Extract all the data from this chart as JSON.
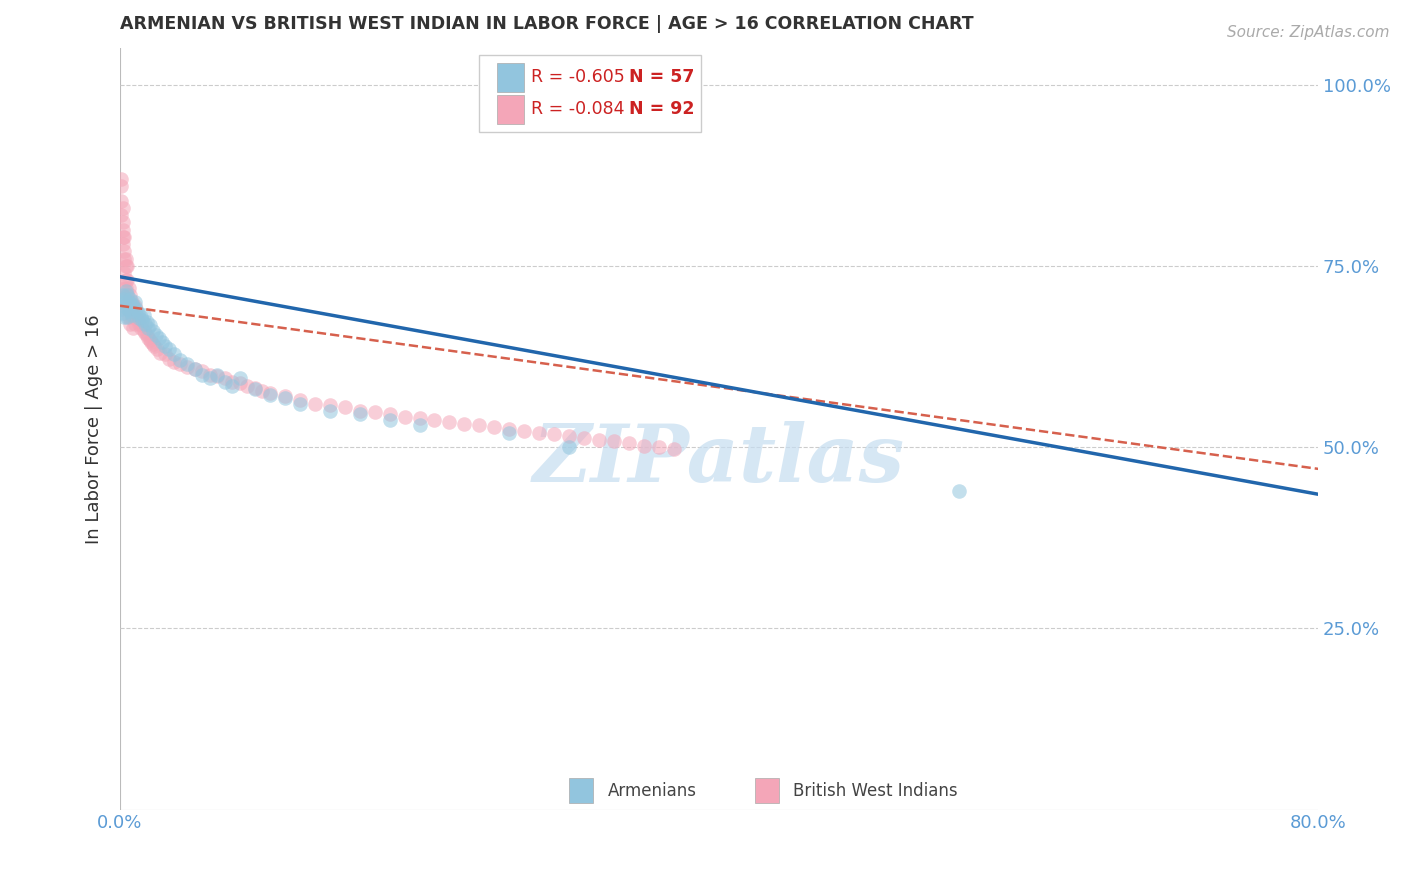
{
  "title": "ARMENIAN VS BRITISH WEST INDIAN IN LABOR FORCE | AGE > 16 CORRELATION CHART",
  "source": "Source: ZipAtlas.com",
  "ylabel": "In Labor Force | Age > 16",
  "right_yticks": [
    "100.0%",
    "75.0%",
    "50.0%",
    "25.0%"
  ],
  "right_ytick_vals": [
    1.0,
    0.75,
    0.5,
    0.25
  ],
  "background_color": "#ffffff",
  "grid_color": "#cccccc",
  "title_color": "#333333",
  "source_color": "#aaaaaa",
  "blue_color": "#92c5de",
  "pink_color": "#f4a6b8",
  "blue_line_color": "#2166ac",
  "pink_line_color": "#d6604d",
  "right_axis_color": "#5b9bd5",
  "legend_R1": "R = -0.605",
  "legend_N1": "N = 57",
  "legend_R2": "R = -0.084",
  "legend_N2": "N = 92",
  "legend_text_color": "#cc2222",
  "armenian_label": "Armenians",
  "bwi_label": "British West Indians",
  "armenians_x": [
    0.001,
    0.001,
    0.002,
    0.002,
    0.003,
    0.003,
    0.003,
    0.004,
    0.004,
    0.005,
    0.005,
    0.005,
    0.006,
    0.006,
    0.007,
    0.007,
    0.008,
    0.008,
    0.009,
    0.01,
    0.011,
    0.012,
    0.013,
    0.014,
    0.015,
    0.016,
    0.017,
    0.018,
    0.019,
    0.02,
    0.022,
    0.024,
    0.026,
    0.028,
    0.03,
    0.033,
    0.036,
    0.04,
    0.045,
    0.05,
    0.055,
    0.06,
    0.065,
    0.07,
    0.075,
    0.08,
    0.09,
    0.1,
    0.11,
    0.12,
    0.14,
    0.16,
    0.18,
    0.2,
    0.26,
    0.3,
    0.56
  ],
  "armenians_y": [
    0.7,
    0.69,
    0.71,
    0.685,
    0.705,
    0.695,
    0.68,
    0.715,
    0.7,
    0.71,
    0.695,
    0.68,
    0.7,
    0.69,
    0.705,
    0.688,
    0.698,
    0.682,
    0.695,
    0.7,
    0.69,
    0.685,
    0.678,
    0.68,
    0.675,
    0.682,
    0.67,
    0.672,
    0.665,
    0.668,
    0.66,
    0.655,
    0.65,
    0.645,
    0.64,
    0.635,
    0.628,
    0.62,
    0.615,
    0.608,
    0.6,
    0.595,
    0.6,
    0.59,
    0.585,
    0.595,
    0.58,
    0.572,
    0.568,
    0.56,
    0.55,
    0.545,
    0.538,
    0.53,
    0.52,
    0.5,
    0.44
  ],
  "bwi_x": [
    0.001,
    0.001,
    0.001,
    0.001,
    0.002,
    0.002,
    0.002,
    0.002,
    0.002,
    0.003,
    0.003,
    0.003,
    0.003,
    0.003,
    0.004,
    0.004,
    0.004,
    0.004,
    0.005,
    0.005,
    0.005,
    0.005,
    0.006,
    0.006,
    0.006,
    0.007,
    0.007,
    0.007,
    0.008,
    0.008,
    0.009,
    0.009,
    0.01,
    0.01,
    0.011,
    0.012,
    0.013,
    0.014,
    0.015,
    0.016,
    0.017,
    0.018,
    0.019,
    0.02,
    0.021,
    0.022,
    0.023,
    0.025,
    0.027,
    0.03,
    0.033,
    0.036,
    0.04,
    0.045,
    0.05,
    0.055,
    0.06,
    0.065,
    0.07,
    0.075,
    0.08,
    0.085,
    0.09,
    0.095,
    0.1,
    0.11,
    0.12,
    0.13,
    0.14,
    0.15,
    0.16,
    0.17,
    0.18,
    0.19,
    0.2,
    0.21,
    0.22,
    0.23,
    0.24,
    0.25,
    0.26,
    0.27,
    0.28,
    0.29,
    0.3,
    0.31,
    0.32,
    0.33,
    0.34,
    0.35,
    0.36,
    0.37
  ],
  "bwi_y": [
    0.87,
    0.84,
    0.82,
    0.86,
    0.81,
    0.79,
    0.8,
    0.78,
    0.83,
    0.79,
    0.76,
    0.74,
    0.72,
    0.77,
    0.75,
    0.72,
    0.76,
    0.73,
    0.73,
    0.71,
    0.75,
    0.69,
    0.72,
    0.7,
    0.68,
    0.71,
    0.69,
    0.67,
    0.7,
    0.68,
    0.69,
    0.665,
    0.695,
    0.67,
    0.68,
    0.675,
    0.67,
    0.665,
    0.668,
    0.66,
    0.658,
    0.655,
    0.65,
    0.648,
    0.645,
    0.642,
    0.64,
    0.635,
    0.63,
    0.628,
    0.622,
    0.618,
    0.615,
    0.61,
    0.608,
    0.605,
    0.6,
    0.598,
    0.595,
    0.59,
    0.588,
    0.585,
    0.582,
    0.578,
    0.575,
    0.57,
    0.565,
    0.56,
    0.558,
    0.555,
    0.55,
    0.548,
    0.545,
    0.542,
    0.54,
    0.538,
    0.535,
    0.532,
    0.53,
    0.528,
    0.525,
    0.522,
    0.52,
    0.518,
    0.515,
    0.512,
    0.51,
    0.508,
    0.505,
    0.502,
    0.5,
    0.498
  ],
  "xlim": [
    0.0,
    0.8
  ],
  "ylim": [
    0.0,
    1.05
  ],
  "arm_line_x": [
    0.0,
    0.8
  ],
  "arm_line_y": [
    0.735,
    0.435
  ],
  "bwi_line_x": [
    0.0,
    0.8
  ],
  "bwi_line_y": [
    0.695,
    0.47
  ],
  "watermark": "ZIPatlas",
  "watermark_color": "#c5ddf0",
  "figsize": [
    14.06,
    8.92
  ],
  "dpi": 100
}
